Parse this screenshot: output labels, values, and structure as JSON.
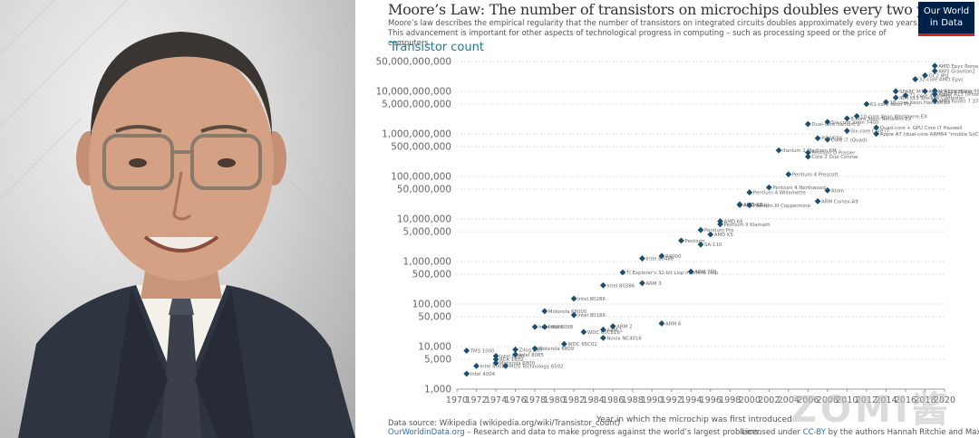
{
  "photo": {
    "subject": "portrait-man-glasses"
  },
  "logo": {
    "line1": "Our World",
    "line2": "in Data"
  },
  "watermark": "ZOMI酱",
  "chart_data": {
    "type": "scatter",
    "title": "Moore’s Law: The number of transistors on microchips doubles every two years",
    "subtitle_line1": "Moore’s law describes the empirical regularity that the number of transistors on integrated circuits doubles approximately every two years.",
    "subtitle_line2": "This advancement is important for other aspects of technological progress in computing – such as processing speed or the price of computers.",
    "ylabel": "Transistor count",
    "xlabel": "Year in which the microchip was first introduced",
    "yscale": "log",
    "ylim": [
      1000,
      50000000000
    ],
    "xlim": [
      1970,
      2020
    ],
    "yticks": [
      {
        "v": 1000,
        "label": "1,000"
      },
      {
        "v": 5000,
        "label": "5,000"
      },
      {
        "v": 10000,
        "label": "10,000"
      },
      {
        "v": 50000,
        "label": "50,000"
      },
      {
        "v": 100000,
        "label": "100,000"
      },
      {
        "v": 500000,
        "label": "500,000"
      },
      {
        "v": 1000000,
        "label": "1,000,000"
      },
      {
        "v": 5000000,
        "label": "5,000,000"
      },
      {
        "v": 10000000,
        "label": "10,000,000"
      },
      {
        "v": 50000000,
        "label": "50,000,000"
      },
      {
        "v": 100000000,
        "label": "100,000,000"
      },
      {
        "v": 500000000,
        "label": "500,000,000"
      },
      {
        "v": 1000000000,
        "label": "1,000,000,000"
      },
      {
        "v": 5000000000,
        "label": "5,000,000,000"
      },
      {
        "v": 10000000000,
        "label": "10,000,000,000"
      },
      {
        "v": 50000000000,
        "label": "50,000,000,000"
      }
    ],
    "xticks": [
      1970,
      1972,
      1974,
      1976,
      1978,
      1980,
      1982,
      1984,
      1986,
      1988,
      1990,
      1992,
      1994,
      1996,
      1998,
      2000,
      2002,
      2004,
      2006,
      2008,
      2010,
      2012,
      2014,
      2016,
      2018,
      2020
    ],
    "grid": true,
    "points": [
      {
        "name": "Intel 4004",
        "x": 1971,
        "y": 2300
      },
      {
        "name": "Intel 8008",
        "x": 1972,
        "y": 3500
      },
      {
        "name": "TMS 1000",
        "x": 1971,
        "y": 8000
      },
      {
        "name": "RCA 1802",
        "x": 1974,
        "y": 5000
      },
      {
        "name": "Motorola 6800",
        "x": 1974,
        "y": 4100
      },
      {
        "name": "MOS Technology 6502",
        "x": 1975,
        "y": 3510
      },
      {
        "name": "Intel 8080",
        "x": 1974,
        "y": 6000
      },
      {
        "name": "Intel 8085",
        "x": 1976,
        "y": 6500
      },
      {
        "name": "Zilog Z80",
        "x": 1976,
        "y": 8500
      },
      {
        "name": "Motorola 6809",
        "x": 1978,
        "y": 9000
      },
      {
        "name": "Intel 8086",
        "x": 1978,
        "y": 29000
      },
      {
        "name": "Intel 8088",
        "x": 1979,
        "y": 29000
      },
      {
        "name": "Motorola 68000",
        "x": 1979,
        "y": 68000
      },
      {
        "name": "WDC 65C02",
        "x": 1981,
        "y": 11500
      },
      {
        "name": "Intel 80186",
        "x": 1982,
        "y": 55000
      },
      {
        "name": "Intel 80286",
        "x": 1982,
        "y": 134000
      },
      {
        "name": "WDC 65C816",
        "x": 1983,
        "y": 22000
      },
      {
        "name": "Intel 80386",
        "x": 1985,
        "y": 275000
      },
      {
        "name": "ARM 1",
        "x": 1985,
        "y": 25000
      },
      {
        "name": "ARM 2",
        "x": 1986,
        "y": 30000
      },
      {
        "name": "Novix NC4016",
        "x": 1985,
        "y": 16000
      },
      {
        "name": "TI Explorer's 32-bit Lisp machine chip",
        "x": 1987,
        "y": 553000
      },
      {
        "name": "Intel 80486",
        "x": 1989,
        "y": 1180000
      },
      {
        "name": "ARM 3",
        "x": 1989,
        "y": 310000
      },
      {
        "name": "ARM 6",
        "x": 1991,
        "y": 35000
      },
      {
        "name": "ARM 700",
        "x": 1994,
        "y": 578000
      },
      {
        "name": "R4000",
        "x": 1991,
        "y": 1350000
      },
      {
        "name": "Pentium",
        "x": 1993,
        "y": 3100000
      },
      {
        "name": "SA-110",
        "x": 1995,
        "y": 2500000
      },
      {
        "name": "AMD K5",
        "x": 1996,
        "y": 4300000
      },
      {
        "name": "Pentium Pro",
        "x": 1995,
        "y": 5500000
      },
      {
        "name": "AMD K6",
        "x": 1997,
        "y": 8800000
      },
      {
        "name": "Pentium II Klamath",
        "x": 1997,
        "y": 7500000
      },
      {
        "name": "AMD K6-III",
        "x": 1999,
        "y": 21300000
      },
      {
        "name": "AMD K7",
        "x": 1999,
        "y": 22000000
      },
      {
        "name": "Pentium III Coppermine",
        "x": 2000,
        "y": 21000000
      },
      {
        "name": "Pentium 4 Willamette",
        "x": 2000,
        "y": 42000000
      },
      {
        "name": "Pentium 4 Northwood",
        "x": 2002,
        "y": 55000000
      },
      {
        "name": "Pentium 4 Prescott",
        "x": 2004,
        "y": 112000000
      },
      {
        "name": "Pentium D Presler",
        "x": 2006,
        "y": 362000000
      },
      {
        "name": "Core 2 Duo Conroe",
        "x": 2006,
        "y": 291000000
      },
      {
        "name": "Dual-core Itanium 2",
        "x": 2006,
        "y": 1700000000
      },
      {
        "name": "Core i7 (Quad)",
        "x": 2008,
        "y": 731000000
      },
      {
        "name": "ARM Cortex-A9",
        "x": 2007,
        "y": 26000000
      },
      {
        "name": "Atom",
        "x": 2008,
        "y": 47000000
      },
      {
        "name": "Itanium 2 Madison 6M",
        "x": 2003,
        "y": 410000000
      },
      {
        "name": "POWER6",
        "x": 2007,
        "y": 789000000
      },
      {
        "name": "Six-core Xeon 7400",
        "x": 2008,
        "y": 1900000000
      },
      {
        "name": "8-core Xeon Nehalem-EX",
        "x": 2010,
        "y": 2300000000
      },
      {
        "name": "10-core Xeon Westmere-EX",
        "x": 2011,
        "y": 2600000000
      },
      {
        "name": "Six-core Core i7",
        "x": 2010,
        "y": 1170000000
      },
      {
        "name": "Apple A7 (dual-core ARM64 \"mobile SoC\")",
        "x": 2013,
        "y": 1000000000
      },
      {
        "name": "Quad-core + GPU Core i7 Haswell",
        "x": 2013,
        "y": 1400000000
      },
      {
        "name": "IBM z13 Storage Controller",
        "x": 2015,
        "y": 7100000000
      },
      {
        "name": "18-core Xeon Haswell-E5",
        "x": 2014,
        "y": 5560000000
      },
      {
        "name": "72-core Xeon Phi",
        "x": 2016,
        "y": 8000000000
      },
      {
        "name": "32-core AMD Epyc",
        "x": 2017,
        "y": 19200000000
      },
      {
        "name": "Apple A12X Bionic",
        "x": 2018,
        "y": 10000000000
      },
      {
        "name": "HiSilicon Kirin 990 5G",
        "x": 2019,
        "y": 10300000000
      },
      {
        "name": "AWS Graviton2",
        "x": 2019,
        "y": 30000000000
      },
      {
        "name": "AMD Epyc Rome",
        "x": 2019,
        "y": 39540000000
      },
      {
        "name": "GC2 IPU",
        "x": 2018,
        "y": 23600000000
      },
      {
        "name": "SPARC M7",
        "x": 2015,
        "y": 10000000000
      },
      {
        "name": "61-core Xeon Phi",
        "x": 2012,
        "y": 5000000000
      },
      {
        "name": "Apple A13 (iPhone 11 Pro)",
        "x": 2019,
        "y": 8500000000
      },
      {
        "name": "AMD Ryzen 7 3700X",
        "x": 2019,
        "y": 5990000000
      }
    ]
  },
  "footer": {
    "source": "Data source: Wikipedia (wikipedia.org/wiki/Transistor_count)",
    "site": "OurWorldinData.org",
    "mission": " – Research and data to make progress against the world’s largest problems.",
    "license_prefix": "Licensed under ",
    "license_link": "CC-BY",
    "license_suffix": " by the authors Hannah Ritchie and Max Roser."
  }
}
